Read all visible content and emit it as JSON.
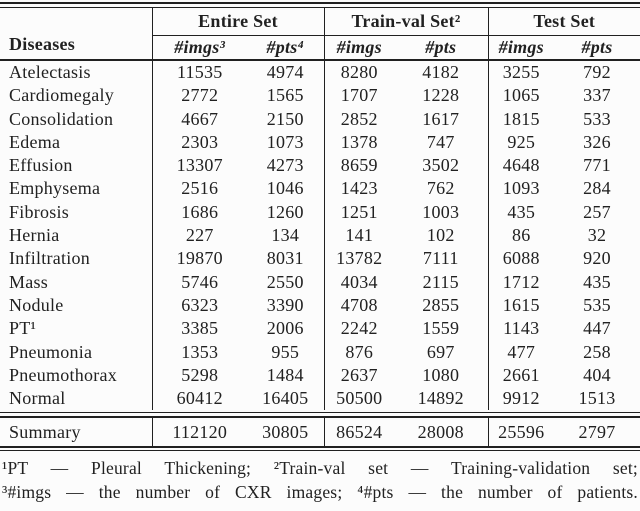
{
  "page": {
    "background": "#fcfcfc",
    "ink": "#212121"
  },
  "table": {
    "header": {
      "diseases": "Diseases",
      "groups": [
        {
          "label": "Entire Set",
          "sub": [
            "#imgs³",
            "#pts⁴"
          ]
        },
        {
          "label": "Train-val Set²",
          "sub": [
            "#imgs",
            "#pts"
          ]
        },
        {
          "label": "Test Set",
          "sub": [
            "#imgs",
            "#pts"
          ]
        }
      ]
    },
    "rows": [
      {
        "disease": "Atelectasis",
        "values": [
          "11535",
          "4974",
          "8280",
          "4182",
          "3255",
          "792"
        ]
      },
      {
        "disease": "Cardiomegaly",
        "values": [
          "2772",
          "1565",
          "1707",
          "1228",
          "1065",
          "337"
        ]
      },
      {
        "disease": "Consolidation",
        "values": [
          "4667",
          "2150",
          "2852",
          "1617",
          "1815",
          "533"
        ]
      },
      {
        "disease": "Edema",
        "values": [
          "2303",
          "1073",
          "1378",
          "747",
          "925",
          "326"
        ]
      },
      {
        "disease": "Effusion",
        "values": [
          "13307",
          "4273",
          "8659",
          "3502",
          "4648",
          "771"
        ]
      },
      {
        "disease": "Emphysema",
        "values": [
          "2516",
          "1046",
          "1423",
          "762",
          "1093",
          "284"
        ]
      },
      {
        "disease": "Fibrosis",
        "values": [
          "1686",
          "1260",
          "1251",
          "1003",
          "435",
          "257"
        ]
      },
      {
        "disease": "Hernia",
        "values": [
          "227",
          "134",
          "141",
          "102",
          "86",
          "32"
        ]
      },
      {
        "disease": "Infiltration",
        "values": [
          "19870",
          "8031",
          "13782",
          "7111",
          "6088",
          "920"
        ]
      },
      {
        "disease": "Mass",
        "values": [
          "5746",
          "2550",
          "4034",
          "2115",
          "1712",
          "435"
        ]
      },
      {
        "disease": "Nodule",
        "values": [
          "6323",
          "3390",
          "4708",
          "2855",
          "1615",
          "535"
        ]
      },
      {
        "disease": "PT¹",
        "values": [
          "3385",
          "2006",
          "2242",
          "1559",
          "1143",
          "447"
        ]
      },
      {
        "disease": "Pneumonia",
        "values": [
          "1353",
          "955",
          "876",
          "697",
          "477",
          "258"
        ]
      },
      {
        "disease": "Pneumothorax",
        "values": [
          "5298",
          "1484",
          "2637",
          "1080",
          "2661",
          "404"
        ]
      },
      {
        "disease": "Normal",
        "values": [
          "60412",
          "16405",
          "50500",
          "14892",
          "9912",
          "1513"
        ]
      }
    ],
    "summary": {
      "label": "Summary",
      "values": [
        "112120",
        "30805",
        "86524",
        "28008",
        "25596",
        "2797"
      ]
    }
  },
  "footnotes": {
    "line1": "¹PT — Pleural Thickening; ²Train-val set — Training-validation set;",
    "line2": "³#imgs — the number of CXR images; ⁴#pts — the number of patients."
  }
}
